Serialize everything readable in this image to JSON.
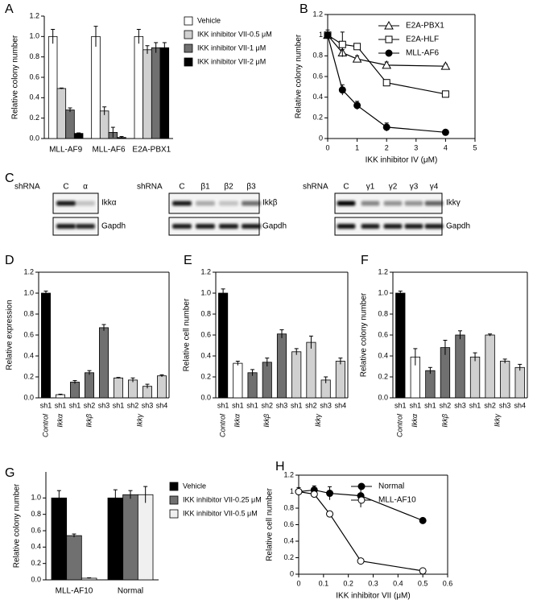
{
  "chart_data": [
    {
      "type": "bar",
      "panel_label": "A",
      "ylabel": "Relative colony number",
      "categories": [
        "MLL-AF9",
        "MLL-AF6",
        "E2A-PBX1"
      ],
      "series": [
        {
          "name": "Vehicle",
          "color": "#ffffff",
          "values": [
            1.0,
            1.0,
            1.0
          ],
          "errors": [
            0.07,
            0.1,
            0.07
          ]
        },
        {
          "name": "IKK inhibitor VII-0.5 μM",
          "color": "#d0d0d0",
          "values": [
            0.49,
            0.27,
            0.87
          ],
          "errors": [
            0.005,
            0.04,
            0.04
          ]
        },
        {
          "name": "IKK inhibitor VII-1 μM",
          "color": "#707070",
          "values": [
            0.28,
            0.06,
            0.89
          ],
          "errors": [
            0.02,
            0.05,
            0.05
          ]
        },
        {
          "name": "IKK inhibitor VII-2 μM",
          "color": "#000000",
          "values": [
            0.05,
            0.01,
            0.89
          ],
          "errors": [
            0.005,
            0.01,
            0.05
          ]
        }
      ],
      "ylim": [
        0,
        1.2
      ],
      "yticks": [
        {
          "value": 0,
          "label": "0.0"
        },
        {
          "value": 0.2,
          "label": "0.2"
        },
        {
          "value": 0.4,
          "label": "0.4"
        },
        {
          "value": 0.6,
          "label": "0.6"
        },
        {
          "value": 0.8,
          "label": "0.8"
        },
        {
          "value": 1,
          "label": "1.0"
        },
        {
          "value": 1.2,
          "label": "1.2"
        }
      ],
      "legend": "right"
    },
    {
      "type": "line",
      "panel_label": "B",
      "ylabel": "Relative colony number",
      "xlabel": "IKK inhibitor IV (μM)",
      "x": [
        0,
        0.5,
        1,
        2,
        4
      ],
      "series": [
        {
          "name": "E2A-PBX1",
          "color": "#000000",
          "marker": "triangle-open",
          "values": [
            1.0,
            0.83,
            0.77,
            0.71,
            0.7
          ],
          "errors": [
            0.02,
            0.03,
            0.03,
            0.03,
            0.02
          ]
        },
        {
          "name": "E2A-HLF",
          "color": "#000000",
          "marker": "square-open",
          "values": [
            1.0,
            0.91,
            0.89,
            0.54,
            0.43
          ],
          "errors": [
            0.02,
            0.12,
            0.02,
            0.02,
            0.02
          ]
        },
        {
          "name": "MLL-AF6",
          "color": "#000000",
          "marker": "circle-filled",
          "values": [
            1.0,
            0.47,
            0.32,
            0.11,
            0.06
          ],
          "errors": [
            0.05,
            0.05,
            0.04,
            0.04,
            0.01
          ]
        }
      ],
      "xlim": [
        0,
        5
      ],
      "xticks": [
        0,
        1,
        2,
        3,
        4,
        5
      ],
      "ylim": [
        0,
        1.2
      ],
      "yticks": [
        0,
        0.2,
        0.4,
        0.6,
        0.8,
        1,
        1.2
      ],
      "legend": "upper right"
    },
    {
      "type": "bar",
      "panel_label": "D",
      "ylabel": "Relative expression",
      "groups": [
        {
          "name": "Control",
          "color": "#000000",
          "categories": [
            "sh1"
          ],
          "values": [
            1.0
          ],
          "errors": [
            0.02
          ]
        },
        {
          "name": "Ikkα",
          "color": "#ffffff",
          "categories": [
            "sh1"
          ],
          "values": [
            0.03
          ],
          "errors": [
            0.005
          ]
        },
        {
          "name": "Ikkβ",
          "color": "#707070",
          "categories": [
            "sh1",
            "sh2",
            "sh3"
          ],
          "values": [
            0.15,
            0.24,
            0.67
          ],
          "errors": [
            0.015,
            0.02,
            0.03
          ]
        },
        {
          "name": "Ikkγ",
          "color": "#d0d0d0",
          "categories": [
            "sh1",
            "sh2",
            "sh3",
            "sh4"
          ],
          "values": [
            0.19,
            0.17,
            0.11,
            0.21
          ],
          "errors": [
            0.005,
            0.02,
            0.02,
            0.01
          ]
        }
      ],
      "ylim": [
        0,
        1.2
      ],
      "yticks": [
        {
          "value": 0,
          "label": "0.0"
        },
        {
          "value": 0.2,
          "label": "0.2"
        },
        {
          "value": 0.4,
          "label": "0.4"
        },
        {
          "value": 0.6,
          "label": "0.6"
        },
        {
          "value": 0.8,
          "label": "0.8"
        },
        {
          "value": 1,
          "label": "1.0"
        },
        {
          "value": 1.2,
          "label": "1.2"
        }
      ]
    },
    {
      "type": "bar",
      "panel_label": "E",
      "ylabel": "Relative cell number",
      "groups": [
        {
          "name": "Control",
          "color": "#000000",
          "categories": [
            "sh1"
          ],
          "values": [
            1.0
          ],
          "errors": [
            0.04
          ]
        },
        {
          "name": "Ikkα",
          "color": "#ffffff",
          "categories": [
            "sh1"
          ],
          "values": [
            0.33
          ],
          "errors": [
            0.02
          ]
        },
        {
          "name": "Ikkβ",
          "color": "#707070",
          "categories": [
            "sh1",
            "sh2",
            "sh3"
          ],
          "values": [
            0.24,
            0.34,
            0.61
          ],
          "errors": [
            0.03,
            0.04,
            0.04
          ]
        },
        {
          "name": "Ikkγ",
          "color": "#d0d0d0",
          "categories": [
            "sh1",
            "sh2",
            "sh3",
            "sh4"
          ],
          "values": [
            0.44,
            0.53,
            0.17,
            0.35
          ],
          "errors": [
            0.03,
            0.06,
            0.03,
            0.03
          ]
        }
      ],
      "ylim": [
        0,
        1.2
      ],
      "yticks": [
        {
          "value": 0,
          "label": "0.0"
        },
        {
          "value": 0.2,
          "label": "0.2"
        },
        {
          "value": 0.4,
          "label": "0.4"
        },
        {
          "value": 0.6,
          "label": "0.6"
        },
        {
          "value": 0.8,
          "label": "0.8"
        },
        {
          "value": 1,
          "label": "1.0"
        },
        {
          "value": 1.2,
          "label": "1.2"
        }
      ]
    },
    {
      "type": "bar",
      "panel_label": "F",
      "ylabel": "Relative colony number",
      "groups": [
        {
          "name": "Control",
          "color": "#000000",
          "categories": [
            "sh1"
          ],
          "values": [
            1.0
          ],
          "errors": [
            0.02
          ]
        },
        {
          "name": "Ikkα",
          "color": "#ffffff",
          "categories": [
            "sh1"
          ],
          "values": [
            0.39
          ],
          "errors": [
            0.08
          ]
        },
        {
          "name": "Ikkβ",
          "color": "#707070",
          "categories": [
            "sh1",
            "sh2",
            "sh3"
          ],
          "values": [
            0.26,
            0.48,
            0.6
          ],
          "errors": [
            0.03,
            0.07,
            0.04
          ]
        },
        {
          "name": "Ikkγ",
          "color": "#d0d0d0",
          "categories": [
            "sh1",
            "sh2",
            "sh3",
            "sh4"
          ],
          "values": [
            0.39,
            0.6,
            0.35,
            0.29
          ],
          "errors": [
            0.04,
            0.01,
            0.02,
            0.03
          ]
        }
      ],
      "ylim": [
        0,
        1.2
      ],
      "yticks": [
        {
          "value": 0,
          "label": "0.0"
        },
        {
          "value": 0.2,
          "label": "0.2"
        },
        {
          "value": 0.4,
          "label": "0.4"
        },
        {
          "value": 0.6,
          "label": "0.6"
        },
        {
          "value": 0.8,
          "label": "0.8"
        },
        {
          "value": 1,
          "label": "1.0"
        },
        {
          "value": 1.2,
          "label": "1.2"
        }
      ]
    },
    {
      "type": "bar",
      "panel_label": "G",
      "ylabel": "Relative colony number",
      "categories": [
        "MLL-AF10",
        "Normal"
      ],
      "series": [
        {
          "name": "Vehicle",
          "color": "#000000",
          "values": [
            1.0,
            1.0
          ],
          "errors": [
            0.09,
            0.1
          ]
        },
        {
          "name": "IKK inhibitor VII-0.25 μM",
          "color": "#707070",
          "values": [
            0.54,
            1.04
          ],
          "errors": [
            0.02,
            0.05
          ]
        },
        {
          "name": "IKK inhibitor VII-0.5 μM",
          "color": "#f0f0f0",
          "values": [
            0.02,
            1.04
          ],
          "errors": [
            0.005,
            0.1
          ]
        }
      ],
      "ylim": [
        0,
        1.2
      ],
      "yticks": [
        {
          "value": 0,
          "label": "0.0"
        },
        {
          "value": 0.2,
          "label": "0.2"
        },
        {
          "value": 0.4,
          "label": "0.4"
        },
        {
          "value": 0.6,
          "label": "0.6"
        },
        {
          "value": 0.8,
          "label": "0.8"
        },
        {
          "value": 1,
          "label": "1.0"
        }
      ],
      "legend": "right"
    },
    {
      "type": "line",
      "panel_label": "H",
      "ylabel": "Relative cell number",
      "xlabel": "IKK inhibitor VII (μM)",
      "x": [
        0,
        0.0625,
        0.125,
        0.25,
        0.5
      ],
      "series": [
        {
          "name": "Normal",
          "color": "#000000",
          "marker": "circle-filled",
          "values": [
            1.0,
            1.02,
            0.98,
            0.95,
            0.65
          ],
          "errors": [
            0.05,
            0.05,
            0.08,
            0.14,
            0.01
          ]
        },
        {
          "name": "MLL-AF10",
          "color": "#000000",
          "marker": "circle-open",
          "values": [
            1.0,
            0.97,
            0.73,
            0.16,
            0.04
          ],
          "errors": [
            0.01,
            0.03,
            0.02,
            0.02,
            0.01
          ]
        }
      ],
      "xlim": [
        0,
        0.6
      ],
      "xticks": [
        0,
        0.1,
        0.2,
        0.3,
        0.4,
        0.5,
        0.6
      ],
      "ylim": [
        0,
        1.2
      ],
      "yticks": [
        0,
        0.2,
        0.4,
        0.6,
        0.8,
        1,
        1.2
      ],
      "legend": "upper right"
    }
  ],
  "blots": {
    "panel_label": "C",
    "panels": [
      {
        "shrna": "shRNA",
        "lanes": [
          "C",
          "α"
        ],
        "target": "Ikkα",
        "control": "Gapdh"
      },
      {
        "shrna": "shRNA",
        "lanes": [
          "C",
          "β1",
          "β2",
          "β3"
        ],
        "target": "Ikkβ",
        "control": "Gapdh"
      },
      {
        "shrna": "shRNA",
        "lanes": [
          "C",
          "γ1",
          "γ2",
          "γ3",
          "γ4"
        ],
        "target": "Ikkγ",
        "control": "Gapdh"
      }
    ]
  }
}
